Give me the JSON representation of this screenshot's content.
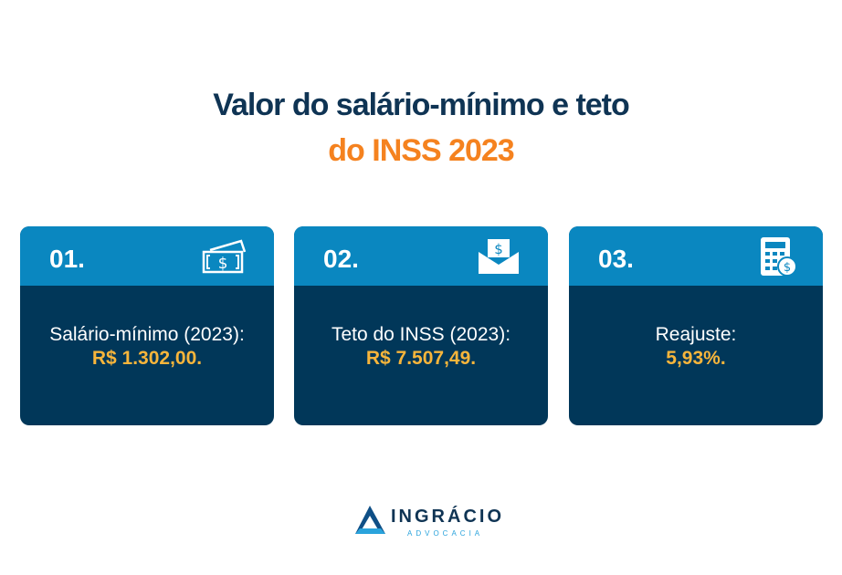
{
  "header": {
    "title_line1": "Valor do salário-mínimo e teto",
    "title_line2": "do INSS 2023"
  },
  "colors": {
    "title": "#0f3454",
    "accent": "#f5821f",
    "card_header": "#0a87c0",
    "card_body": "#013759",
    "value": "#f7b53b"
  },
  "cards": [
    {
      "number": "01.",
      "icon": "money-bills-icon",
      "label": "Salário-mínimo (2023):",
      "value": "R$ 1.302,00."
    },
    {
      "number": "02.",
      "icon": "money-envelope-icon",
      "label": "Teto do INSS (2023):",
      "value": "R$ 7.507,49."
    },
    {
      "number": "03.",
      "icon": "calculator-dollar-icon",
      "label": "Reajuste:",
      "value": "5,93%."
    }
  ],
  "logo": {
    "name": "INGRÁCIO",
    "subtitle": "ADVOCACIA"
  }
}
